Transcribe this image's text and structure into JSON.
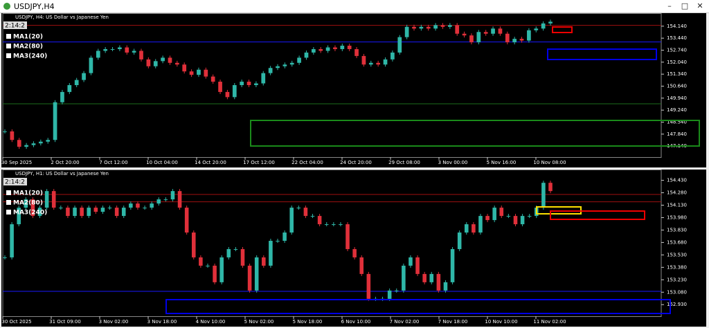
{
  "window": {
    "title": "USDJPY,H4"
  },
  "charts": [
    {
      "type": "candlestick",
      "header": "USDJPY, H4:  US Dollar vs Japanese Yen",
      "timer": "2:14:2",
      "legend": [
        {
          "name": "MA1(20)",
          "color": "#ffd400"
        },
        {
          "name": "MA2(80)",
          "color": "#ff1a1a"
        },
        {
          "name": "MA3(240)",
          "color": "#1a1aff"
        }
      ],
      "up_color": "#2fb7a8",
      "down_color": "#e0303a",
      "ylim": [
        146.5,
        154.9
      ],
      "yticks": [
        {
          "value": 154.14,
          "label": "154.140"
        },
        {
          "value": 153.44,
          "label": "153.440"
        },
        {
          "value": 152.74,
          "label": "152.740"
        },
        {
          "value": 152.04,
          "label": "152.040"
        },
        {
          "value": 151.34,
          "label": "151.340"
        },
        {
          "value": 150.64,
          "label": "150.640"
        },
        {
          "value": 149.94,
          "label": "149.940"
        },
        {
          "value": 149.24,
          "label": "149.240"
        },
        {
          "value": 148.54,
          "label": "148.540"
        },
        {
          "value": 147.84,
          "label": "147.840"
        },
        {
          "value": 147.14,
          "label": "147.140"
        }
      ],
      "xlabels": [
        "30 Sep 2025",
        "2 Oct 20:00",
        "7 Oct 12:00",
        "10 Oct 04:00",
        "14 Oct 20:00",
        "17 Oct 12:00",
        "22 Oct 04:00",
        "24 Oct 20:00",
        "29 Oct 08:00",
        "3 Nov 00:00",
        "5 Nov 16:00",
        "10 Nov 08:00"
      ],
      "closes": [
        148.0,
        147.5,
        147.1,
        147.2,
        147.3,
        147.4,
        147.5,
        149.7,
        150.3,
        150.7,
        151.0,
        151.4,
        152.3,
        152.7,
        152.8,
        152.8,
        152.9,
        152.6,
        152.7,
        152.2,
        151.8,
        152.1,
        152.3,
        152.0,
        151.9,
        151.5,
        151.3,
        151.6,
        151.2,
        150.9,
        150.3,
        150.0,
        150.7,
        150.9,
        150.7,
        150.8,
        151.4,
        151.7,
        151.8,
        151.9,
        152.0,
        152.3,
        152.6,
        152.8,
        152.7,
        152.9,
        152.8,
        153.0,
        152.8,
        152.4,
        151.9,
        152.0,
        151.9,
        152.2,
        152.6,
        153.5,
        154.1,
        154.0,
        154.1,
        154.0,
        154.2,
        154.1,
        154.2,
        153.7,
        153.6,
        153.2,
        153.8,
        153.7,
        154.0,
        153.7,
        153.2,
        153.4,
        153.3,
        153.9,
        154.0,
        154.3,
        154.4
      ]
    },
    {
      "type": "candlestick",
      "header": "USDJPY, H1:  US Dollar vs Japanese Yen",
      "timer": "2:14:2",
      "legend": [
        {
          "name": "MA1(20)",
          "color": "#ffd400"
        },
        {
          "name": "MA2(80)",
          "color": "#ff1a1a"
        },
        {
          "name": "MA3(240)",
          "color": "#1a1aff"
        }
      ],
      "up_color": "#2fb7a8",
      "down_color": "#e0303a",
      "ylim": [
        152.79,
        154.56
      ],
      "yticks": [
        {
          "value": 154.43,
          "label": "154.430"
        },
        {
          "value": 154.28,
          "label": "154.280"
        },
        {
          "value": 154.13,
          "label": "154.130"
        },
        {
          "value": 153.98,
          "label": "153.980"
        },
        {
          "value": 153.83,
          "label": "153.830"
        },
        {
          "value": 153.68,
          "label": "153.680"
        },
        {
          "value": 153.53,
          "label": "153.530"
        },
        {
          "value": 153.38,
          "label": "153.380"
        },
        {
          "value": 153.23,
          "label": "153.230"
        },
        {
          "value": 153.08,
          "label": "153.080"
        },
        {
          "value": 152.93,
          "label": "152.930"
        }
      ],
      "xlabels": [
        "30 Oct 2025",
        "31 Oct 09:00",
        "3 Nov 02:00",
        "3 Nov 18:00",
        "4 Nov 10:00",
        "5 Nov 02:00",
        "5 Nov 18:00",
        "6 Nov 10:00",
        "7 Nov 02:00",
        "7 Nov 18:00",
        "10 Nov 10:00",
        "11 Nov 02:00"
      ],
      "closes": [
        153.5,
        153.9,
        154.1,
        154.2,
        154.0,
        154.1,
        154.3,
        154.1,
        154.1,
        154.0,
        154.1,
        154.0,
        154.1,
        154.05,
        154.1,
        154.1,
        154.0,
        154.1,
        154.15,
        154.1,
        154.1,
        154.15,
        154.2,
        154.2,
        154.3,
        154.1,
        153.8,
        153.5,
        153.4,
        153.4,
        153.2,
        153.5,
        153.6,
        153.6,
        153.4,
        153.1,
        153.5,
        153.4,
        153.7,
        153.7,
        153.8,
        154.1,
        154.1,
        154.0,
        154.0,
        153.9,
        153.9,
        153.9,
        153.9,
        153.6,
        153.5,
        153.3,
        153.0,
        153.0,
        153.0,
        153.1,
        153.1,
        153.4,
        153.5,
        153.3,
        153.2,
        153.3,
        153.1,
        153.2,
        153.6,
        153.8,
        153.9,
        153.8,
        154.0,
        153.95,
        154.1,
        154.0,
        154.0,
        153.9,
        154.0,
        154.0,
        154.1,
        154.4,
        154.3
      ]
    }
  ]
}
